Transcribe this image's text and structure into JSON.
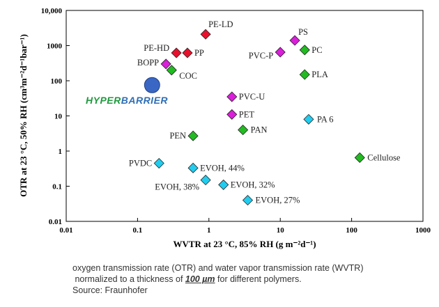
{
  "chart_data": {
    "type": "scatter",
    "xlabel": "WVTR at 23 °C, 85% RH (g m⁻²d⁻¹)",
    "ylabel": "OTR at 23 °C, 50% RH (cm³m⁻²d⁻¹bar⁻¹)",
    "x_scale": "log",
    "y_scale": "log",
    "xlim": [
      0.01,
      1000
    ],
    "ylim": [
      0.01,
      10000
    ],
    "x_tick_labels": [
      "0.01",
      "0.1",
      "1",
      "10",
      "100",
      "1000"
    ],
    "y_tick_labels": [
      "0.01",
      "0.1",
      "1",
      "10",
      "100",
      "1000",
      "10,000"
    ],
    "grid": false,
    "points": [
      {
        "label": "PE-LD",
        "x": 0.9,
        "y": 2100,
        "color": "#e8112d"
      },
      {
        "label": "PE-HD",
        "x": 0.35,
        "y": 620,
        "color": "#e8112d"
      },
      {
        "label": "PP",
        "x": 0.5,
        "y": 620,
        "color": "#e8112d"
      },
      {
        "label": "BOPP",
        "x": 0.25,
        "y": 300,
        "color": "#d91fd9"
      },
      {
        "label": "COC",
        "x": 0.3,
        "y": 200,
        "color": "#22bb22"
      },
      {
        "label": "PS",
        "x": 16,
        "y": 1400,
        "color": "#d91fd9"
      },
      {
        "label": "PVC-P",
        "x": 10,
        "y": 650,
        "color": "#d91fd9"
      },
      {
        "label": "PC",
        "x": 22,
        "y": 750,
        "color": "#22bb22"
      },
      {
        "label": "PLA",
        "x": 22,
        "y": 150,
        "color": "#22bb22"
      },
      {
        "label": "PVC-U",
        "x": 2.1,
        "y": 35,
        "color": "#d91fd9"
      },
      {
        "label": "PET",
        "x": 2.1,
        "y": 11,
        "color": "#d91fd9"
      },
      {
        "label": "PAN",
        "x": 3,
        "y": 4,
        "color": "#22bb22"
      },
      {
        "label": "PA 6",
        "x": 25,
        "y": 8,
        "color": "#22ccee"
      },
      {
        "label": "PEN",
        "x": 0.6,
        "y": 2.7,
        "color": "#22bb22"
      },
      {
        "label": "Cellulose",
        "x": 130,
        "y": 0.65,
        "color": "#22bb22"
      },
      {
        "label": "PVDC",
        "x": 0.2,
        "y": 0.45,
        "color": "#22ccee"
      },
      {
        "label": "EVOH, 44%",
        "x": 0.6,
        "y": 0.33,
        "color": "#22ccee"
      },
      {
        "label": "EVOH, 38%",
        "x": 0.9,
        "y": 0.15,
        "color": "#22ccee"
      },
      {
        "label": "EVOH, 32%",
        "x": 1.6,
        "y": 0.11,
        "color": "#22ccee"
      },
      {
        "label": "EVOH, 27%",
        "x": 3.5,
        "y": 0.04,
        "color": "#22ccee"
      }
    ],
    "highlight": {
      "label": "HyperBarrier",
      "x": 0.16,
      "y": 75,
      "color": "#3a67c4"
    }
  },
  "caption": {
    "line1": "oxygen transmission rate (OTR) and water vapor transmission rate (WVTR)",
    "line2_pre": " normalized to a thickness of ",
    "line2_em": "100 µm",
    "line2_post": " for different polymers.",
    "line3": "Source: Fraunhofer"
  },
  "brand": {
    "part1": "Hyper",
    "part2": "Barrier",
    "color1": "#1f9a3e",
    "color2": "#2f6fb6"
  }
}
